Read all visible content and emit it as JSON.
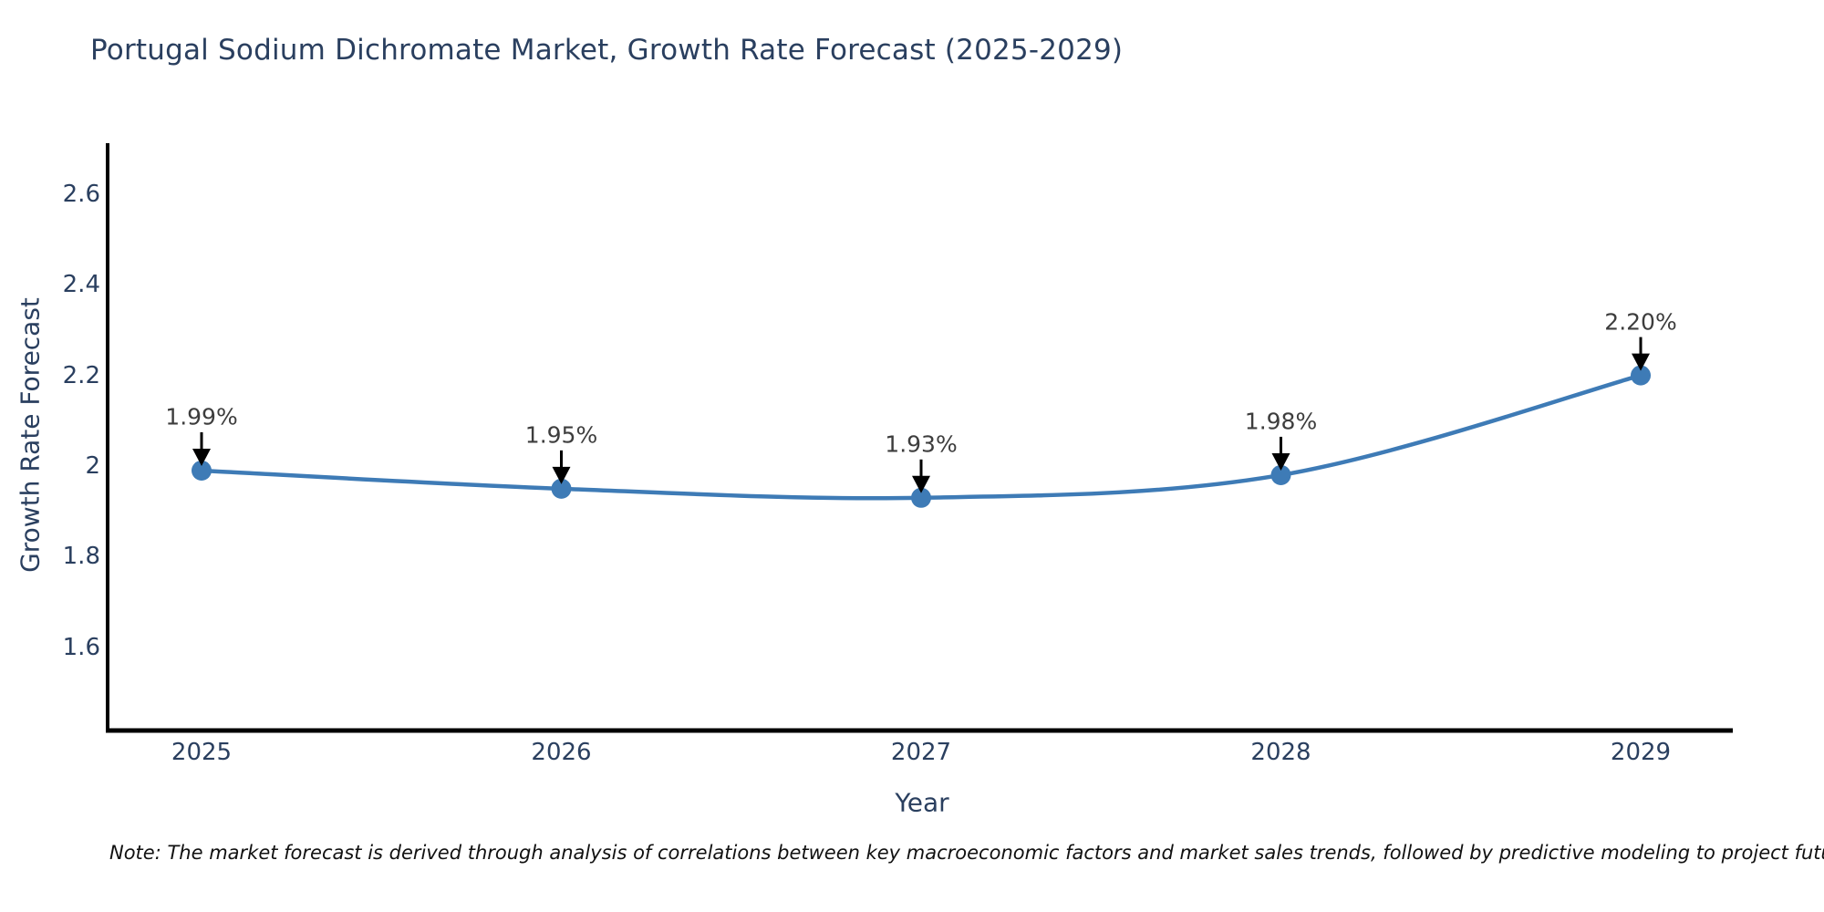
{
  "title": "Portugal Sodium Dichromate Market, Growth Rate Forecast (2025-2029)",
  "note": "Note: The market forecast is derived through analysis of correlations between key macroeconomic factors and market sales trends, followed by predictive modeling to project future sales",
  "chart_data": {
    "type": "line",
    "title": "Portugal Sodium Dichromate Market, Growth Rate Forecast (2025-2029)",
    "xlabel": "Year",
    "ylabel": "Growth Rate Forecast",
    "categories": [
      "2025",
      "2026",
      "2027",
      "2028",
      "2029"
    ],
    "x": [
      2025,
      2026,
      2027,
      2028,
      2029
    ],
    "values": [
      1.99,
      1.95,
      1.93,
      1.98,
      2.2
    ],
    "point_labels": [
      "1.99%",
      "1.95%",
      "1.93%",
      "1.98%",
      "2.20%"
    ],
    "yticks": [
      2.6,
      2.4,
      2.2,
      2,
      1.8,
      1.6
    ],
    "ytick_labels": [
      "2.6",
      "2.4",
      "2.2",
      "2",
      "1.8",
      "1.6"
    ],
    "ylim": [
      1.41,
      2.7
    ],
    "xlim": [
      2024.74,
      2029.26
    ],
    "grid": false,
    "legend": "none",
    "line_shape": "spline",
    "annotation_style": "label-above-with-down-arrow",
    "colors": {
      "line": "#3e7bb6",
      "marker": "#3e7bb6",
      "axis": "#000000",
      "arrow": "#000000",
      "title_text": "#2a3f5f",
      "tick_text": "#2a3f5f",
      "annotation_text": "#3d3d3d",
      "note_text": "#111111",
      "background": "#ffffff"
    }
  }
}
